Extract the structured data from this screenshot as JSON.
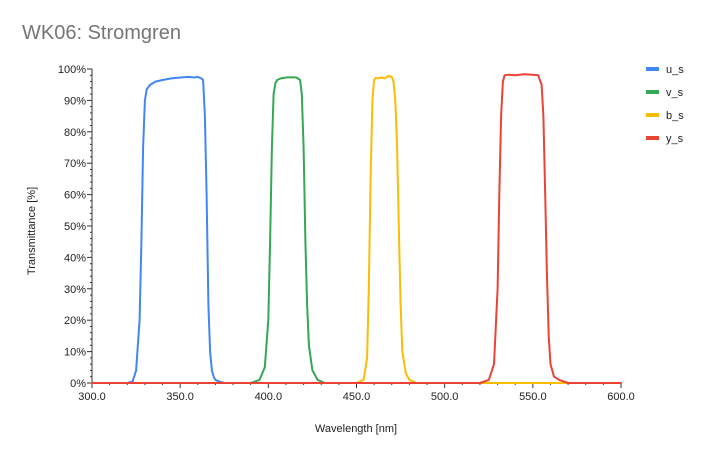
{
  "chart_data": {
    "type": "line",
    "title": "WK06: Stromgren",
    "xlabel": "Wavelength [nm]",
    "ylabel": "Transmittance [%]",
    "xlim": [
      300,
      600
    ],
    "ylim": [
      0,
      100
    ],
    "x_ticks": [
      300,
      350,
      400,
      450,
      500,
      550,
      600
    ],
    "x_tick_labels": [
      "300.0",
      "350.0",
      "400.0",
      "450.0",
      "500.0",
      "550.0",
      "600.0"
    ],
    "y_ticks": [
      0,
      10,
      20,
      30,
      40,
      50,
      60,
      70,
      80,
      90,
      100
    ],
    "y_tick_labels": [
      "0%",
      "10%",
      "20%",
      "30%",
      "40%",
      "50%",
      "60%",
      "70%",
      "80%",
      "90%",
      "100%"
    ],
    "grid": false,
    "legend_position": "right",
    "series": [
      {
        "name": "u_s",
        "color": "#4285f4",
        "x": [
          300,
          320,
          323,
          325,
          327,
          328,
          329,
          330,
          331,
          333,
          336,
          340,
          345,
          350,
          355,
          358,
          360,
          362,
          363,
          364,
          365,
          366,
          367,
          368,
          369,
          370,
          372,
          375,
          380,
          600
        ],
        "y": [
          0,
          0,
          0.5,
          4,
          20,
          45,
          75,
          90,
          93.5,
          95,
          96,
          96.5,
          97,
          97.3,
          97.5,
          97.3,
          97.5,
          97,
          96.5,
          85,
          60,
          25,
          10,
          4,
          2,
          1,
          0.5,
          0,
          0,
          0
        ]
      },
      {
        "name": "v_s",
        "color": "#34a853",
        "x": [
          300,
          390,
          395,
          398,
          400,
          401,
          402,
          403,
          404,
          405,
          407,
          410,
          413,
          416,
          418,
          419,
          420,
          421,
          422,
          423,
          425,
          428,
          432,
          440,
          600
        ],
        "y": [
          0,
          0,
          1,
          5,
          20,
          45,
          75,
          92,
          95.5,
          96.5,
          97,
          97.3,
          97.4,
          97.3,
          96.5,
          92,
          75,
          45,
          25,
          12,
          4,
          1,
          0,
          0,
          0
        ]
      },
      {
        "name": "b_s",
        "color": "#fbbc04",
        "x": [
          300,
          450,
          454,
          456,
          457,
          458,
          459,
          460,
          461,
          462,
          464,
          466,
          468,
          470,
          471,
          472,
          473,
          474,
          475,
          476,
          478,
          480,
          484,
          490,
          600
        ],
        "y": [
          0,
          0,
          1,
          8,
          30,
          65,
          90,
          96.5,
          97.2,
          97,
          97.3,
          97,
          97.8,
          97.5,
          96,
          90,
          75,
          50,
          25,
          10,
          3,
          1,
          0,
          0,
          0
        ]
      },
      {
        "name": "y_s",
        "color": "#ea4335",
        "x": [
          300,
          520,
          525,
          528,
          530,
          531,
          532,
          533,
          534,
          536,
          540,
          545,
          550,
          553,
          555,
          556,
          557,
          558,
          559,
          560,
          562,
          565,
          570,
          600
        ],
        "y": [
          0,
          0,
          1,
          6,
          30,
          60,
          85,
          96,
          98,
          98.2,
          98,
          98.3,
          98.2,
          98,
          95,
          85,
          60,
          35,
          15,
          6,
          2,
          1,
          0,
          0
        ]
      }
    ]
  }
}
